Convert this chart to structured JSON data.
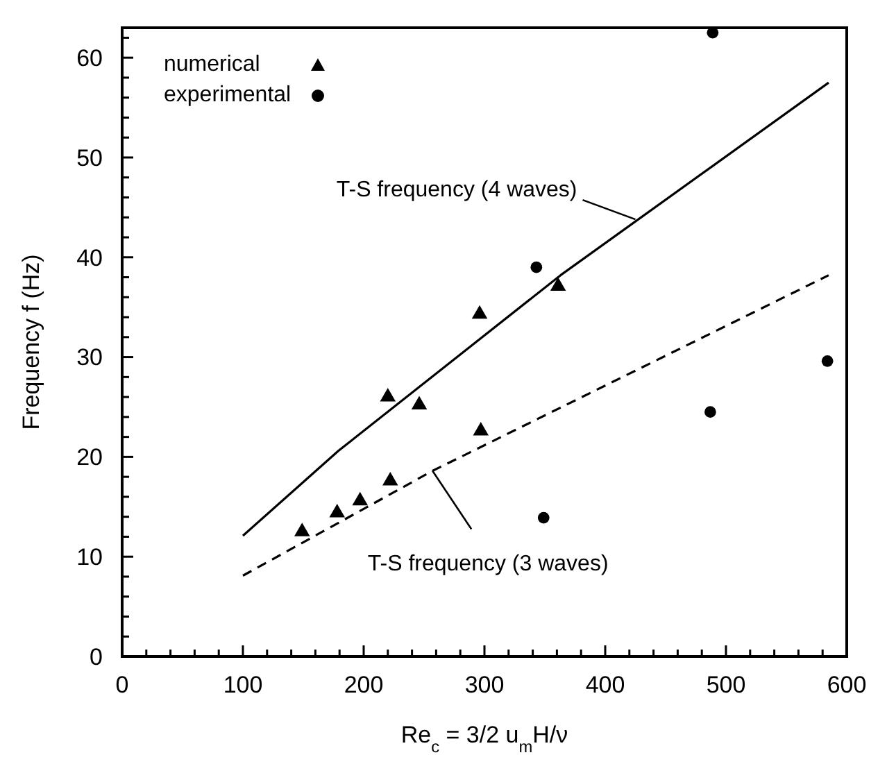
{
  "chart_data": {
    "type": "scatter",
    "xlabel": "Re$_{c}$ = 3/2 u$_{m}$H/ν",
    "ylabel": "Frequency f (Hz)",
    "xlim": [
      0,
      600
    ],
    "ylim": [
      0,
      63
    ],
    "xticks": [
      0,
      {
        "value": 20,
        "label": null
      },
      {
        "value": 40,
        "label": null
      },
      {
        "value": 60,
        "label": null
      },
      {
        "value": 80,
        "label": null
      },
      100,
      {
        "value": 120,
        "label": null
      },
      {
        "value": 140,
        "label": null
      },
      {
        "value": 160,
        "label": null
      },
      {
        "value": 180,
        "label": null
      },
      200,
      {
        "value": 220,
        "label": null
      },
      {
        "value": 240,
        "label": null
      },
      {
        "value": 260,
        "label": null
      },
      {
        "value": 280,
        "label": null
      },
      300,
      {
        "value": 320,
        "label": null
      },
      {
        "value": 340,
        "label": null
      },
      {
        "value": 360,
        "label": null
      },
      {
        "value": 380,
        "label": null
      },
      400,
      {
        "value": 420,
        "label": null
      },
      {
        "value": 440,
        "label": null
      },
      {
        "value": 460,
        "label": null
      },
      {
        "value": 480,
        "label": null
      },
      500,
      {
        "value": 520,
        "label": null
      },
      {
        "value": 540,
        "label": null
      },
      {
        "value": 560,
        "label": null
      },
      {
        "value": 580,
        "label": null
      },
      600
    ],
    "yticks": [
      0,
      {
        "value": 2,
        "label": null
      },
      {
        "value": 4,
        "label": null
      },
      {
        "value": 6,
        "label": null
      },
      {
        "value": 8,
        "label": null
      },
      10,
      {
        "value": 12,
        "label": null
      },
      {
        "value": 14,
        "label": null
      },
      {
        "value": 16,
        "label": null
      },
      {
        "value": 18,
        "label": null
      },
      20,
      {
        "value": 22,
        "label": null
      },
      {
        "value": 24,
        "label": null
      },
      {
        "value": 26,
        "label": null
      },
      {
        "value": 28,
        "label": null
      },
      30,
      {
        "value": 32,
        "label": null
      },
      {
        "value": 34,
        "label": null
      },
      {
        "value": 36,
        "label": null
      },
      {
        "value": 38,
        "label": null
      },
      40,
      {
        "value": 42,
        "label": null
      },
      {
        "value": 44,
        "label": null
      },
      {
        "value": 46,
        "label": null
      },
      {
        "value": 48,
        "label": null
      },
      50,
      {
        "value": 52,
        "label": null
      },
      {
        "value": 54,
        "label": null
      },
      {
        "value": 56,
        "label": null
      },
      {
        "value": 58,
        "label": null
      },
      60,
      {
        "value": 62,
        "label": null
      }
    ],
    "grid": false,
    "legend": "top left",
    "series": [
      {
        "name": "numerical",
        "marker": "triangle",
        "color": "#000000",
        "x": [
          149,
          178,
          197,
          222,
          220,
          246,
          296,
          297,
          361
        ],
        "values": [
          12.5,
          14.4,
          15.6,
          17.6,
          26.0,
          25.2,
          34.3,
          22.6,
          37.1
        ]
      },
      {
        "name": "experimental",
        "marker": "circle",
        "color": "#000000",
        "x": [
          343,
          349,
          487,
          489,
          584
        ],
        "values": [
          39.0,
          13.9,
          24.5,
          62.5,
          29.6
        ]
      },
      {
        "type": "line",
        "marker": "none",
        "line_style": "solid",
        "color": "#000000",
        "x": [
          100,
          179,
          363,
          585
        ],
        "values": [
          12.1,
          20.6,
          38.2,
          57.5
        ]
      },
      {
        "type": "line",
        "marker": "none",
        "line_style": "dashed",
        "color": "#000000",
        "x": [
          100,
          257,
          585
        ],
        "values": [
          8.1,
          18.6,
          38.2
        ]
      }
    ],
    "annotations": [
      {
        "text": "T-S frequency (4 waves)",
        "x": 425,
        "y": 43.8
      },
      {
        "text": "T-S frequency (3 waves)",
        "x": 257,
        "y": 18.6
      }
    ]
  }
}
